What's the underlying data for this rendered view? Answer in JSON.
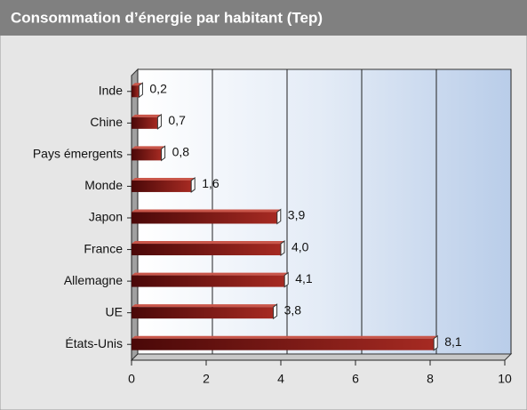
{
  "chart_data": {
    "type": "bar",
    "orientation": "horizontal",
    "title": "Consommation d’énergie par habitant (Tep)",
    "categories": [
      "Inde",
      "Chine",
      "Pays émergents",
      "Monde",
      "Japon",
      "France",
      "Allemagne",
      "UE",
      "États-Unis"
    ],
    "values": [
      0.2,
      0.7,
      0.8,
      1.6,
      3.9,
      4.0,
      4.1,
      3.8,
      8.1
    ],
    "value_labels": [
      "0,2",
      "0,7",
      "0,8",
      "1,6",
      "3,9",
      "4,0",
      "4,1",
      "3,8",
      "8,1"
    ],
    "color": "#8b1a1a",
    "xlim": [
      0,
      10
    ],
    "xticks": [
      0,
      2,
      4,
      6,
      8,
      10
    ],
    "grid": true
  }
}
